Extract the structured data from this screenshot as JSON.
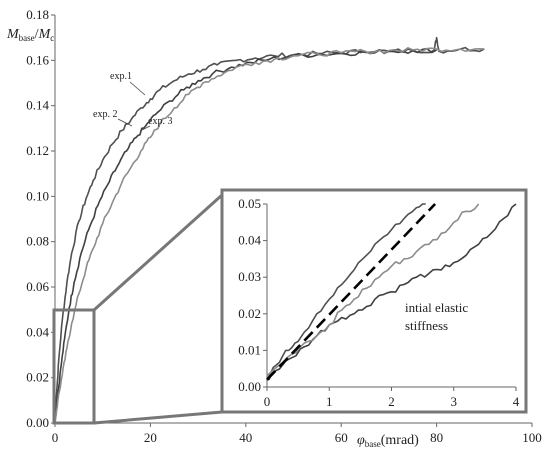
{
  "chart_data": [
    {
      "type": "line",
      "xlabel_symbol": "φ",
      "xlabel_sub": "base",
      "xlabel_unit": "(mrad)",
      "ylabel_num": "M",
      "ylabel_num_sub": "base",
      "ylabel_den": "M",
      "ylabel_den_sub": "c",
      "xlim": [
        0,
        100
      ],
      "ylim": [
        0,
        0.18
      ],
      "x_ticks": [
        "0",
        "20",
        "40",
        "60",
        "80",
        "100"
      ],
      "y_ticks": [
        "0.00",
        "0.02",
        "0.04",
        "0.06",
        "0.08",
        "0.10",
        "0.12",
        "0.14",
        "0.16",
        "0.18"
      ],
      "grid": false,
      "series": [
        {
          "name": "exp.1",
          "color": "#505050",
          "x": [
            0,
            0.3,
            0.8,
            1.5,
            2.5,
            3.5,
            5,
            6.5,
            8,
            10,
            12,
            14,
            16,
            18,
            20,
            22,
            25,
            28,
            31,
            34,
            38,
            42,
            46,
            50,
            55,
            60,
            65,
            70,
            75,
            79.5,
            80,
            80.5,
            85,
            90
          ],
          "y": [
            0,
            0.012,
            0.028,
            0.045,
            0.062,
            0.075,
            0.089,
            0.099,
            0.107,
            0.116,
            0.123,
            0.129,
            0.134,
            0.139,
            0.143,
            0.147,
            0.151,
            0.154,
            0.156,
            0.158,
            0.16,
            0.161,
            0.162,
            0.1625,
            0.163,
            0.1635,
            0.164,
            0.164,
            0.1643,
            0.1645,
            0.17,
            0.164,
            0.165,
            0.165
          ]
        },
        {
          "name": "exp. 2",
          "color": "#404040",
          "x": [
            0,
            0.5,
            1.2,
            2,
            3,
            4,
            5.5,
            7,
            9,
            11,
            13,
            15,
            17,
            19,
            21,
            24,
            27,
            30,
            33,
            37,
            41,
            45,
            50,
            55,
            60,
            65,
            70,
            75,
            80
          ],
          "y": [
            0,
            0.011,
            0.024,
            0.037,
            0.051,
            0.062,
            0.075,
            0.085,
            0.096,
            0.105,
            0.113,
            0.12,
            0.126,
            0.131,
            0.136,
            0.142,
            0.147,
            0.151,
            0.154,
            0.157,
            0.159,
            0.1605,
            0.162,
            0.1625,
            0.163,
            0.1635,
            0.164,
            0.1642,
            0.1645
          ]
        },
        {
          "name": "exp. 3",
          "color": "#8c8c8c",
          "x": [
            0,
            0.6,
            1.5,
            2.5,
            3.5,
            5,
            6.5,
            8,
            10,
            12,
            14,
            16,
            18,
            20,
            22,
            25,
            28,
            31,
            34,
            38,
            42,
            46,
            50,
            55,
            60,
            65,
            70,
            75,
            80,
            85,
            90
          ],
          "y": [
            0,
            0.01,
            0.021,
            0.033,
            0.044,
            0.057,
            0.068,
            0.077,
            0.088,
            0.097,
            0.106,
            0.113,
            0.12,
            0.126,
            0.132,
            0.139,
            0.145,
            0.15,
            0.153,
            0.157,
            0.159,
            0.1605,
            0.162,
            0.1628,
            0.1633,
            0.164,
            0.1643,
            0.1646,
            0.165,
            0.165,
            0.165
          ]
        }
      ],
      "annotations": [
        "exp.1",
        "exp. 2",
        "exp. 3"
      ]
    },
    {
      "type": "line",
      "xlim": [
        0,
        4
      ],
      "ylim": [
        0,
        0.05
      ],
      "x_ticks": [
        "0",
        "1",
        "2",
        "3",
        "4"
      ],
      "y_ticks": [
        "0.00",
        "0.01",
        "0.02",
        "0.03",
        "0.04",
        "0.05"
      ],
      "annotation": [
        "intial elastic",
        "stiffness"
      ],
      "series": [
        {
          "color": "#505050",
          "x": [
            0,
            0.15,
            0.3,
            0.45,
            0.6,
            0.8,
            1.0,
            1.2,
            1.4,
            1.6,
            1.8,
            2.0,
            2.2,
            2.4,
            2.55
          ],
          "y": [
            0.002,
            0.006,
            0.01,
            0.012,
            0.015,
            0.02,
            0.024,
            0.028,
            0.032,
            0.036,
            0.04,
            0.043,
            0.046,
            0.049,
            0.05
          ]
        },
        {
          "color": "#404040",
          "x": [
            0,
            0.1,
            0.25,
            0.4,
            0.6,
            0.8,
            1.0,
            1.2,
            1.4,
            1.6,
            1.8,
            2.0,
            2.2,
            2.4,
            2.6,
            2.8,
            3.0,
            3.2,
            3.4,
            3.6,
            3.8,
            4.0
          ],
          "y": [
            0.002,
            0.004,
            0.006,
            0.008,
            0.011,
            0.014,
            0.017,
            0.019,
            0.02,
            0.022,
            0.025,
            0.026,
            0.028,
            0.03,
            0.031,
            0.032,
            0.034,
            0.036,
            0.039,
            0.042,
            0.046,
            0.05
          ]
        },
        {
          "color": "#8c8c8c",
          "x": [
            0,
            0.2,
            0.4,
            0.6,
            0.8,
            1.0,
            1.2,
            1.4,
            1.6,
            1.8,
            2.0,
            2.2,
            2.4,
            2.6,
            2.8,
            3.0,
            3.2,
            3.4
          ],
          "y": [
            0.003,
            0.006,
            0.009,
            0.012,
            0.014,
            0.017,
            0.021,
            0.024,
            0.027,
            0.03,
            0.033,
            0.035,
            0.037,
            0.039,
            0.042,
            0.045,
            0.048,
            0.05
          ]
        },
        {
          "color": "#000000",
          "dashed": true,
          "x": [
            0,
            2.7
          ],
          "y": [
            0.002,
            0.05
          ]
        }
      ]
    }
  ]
}
